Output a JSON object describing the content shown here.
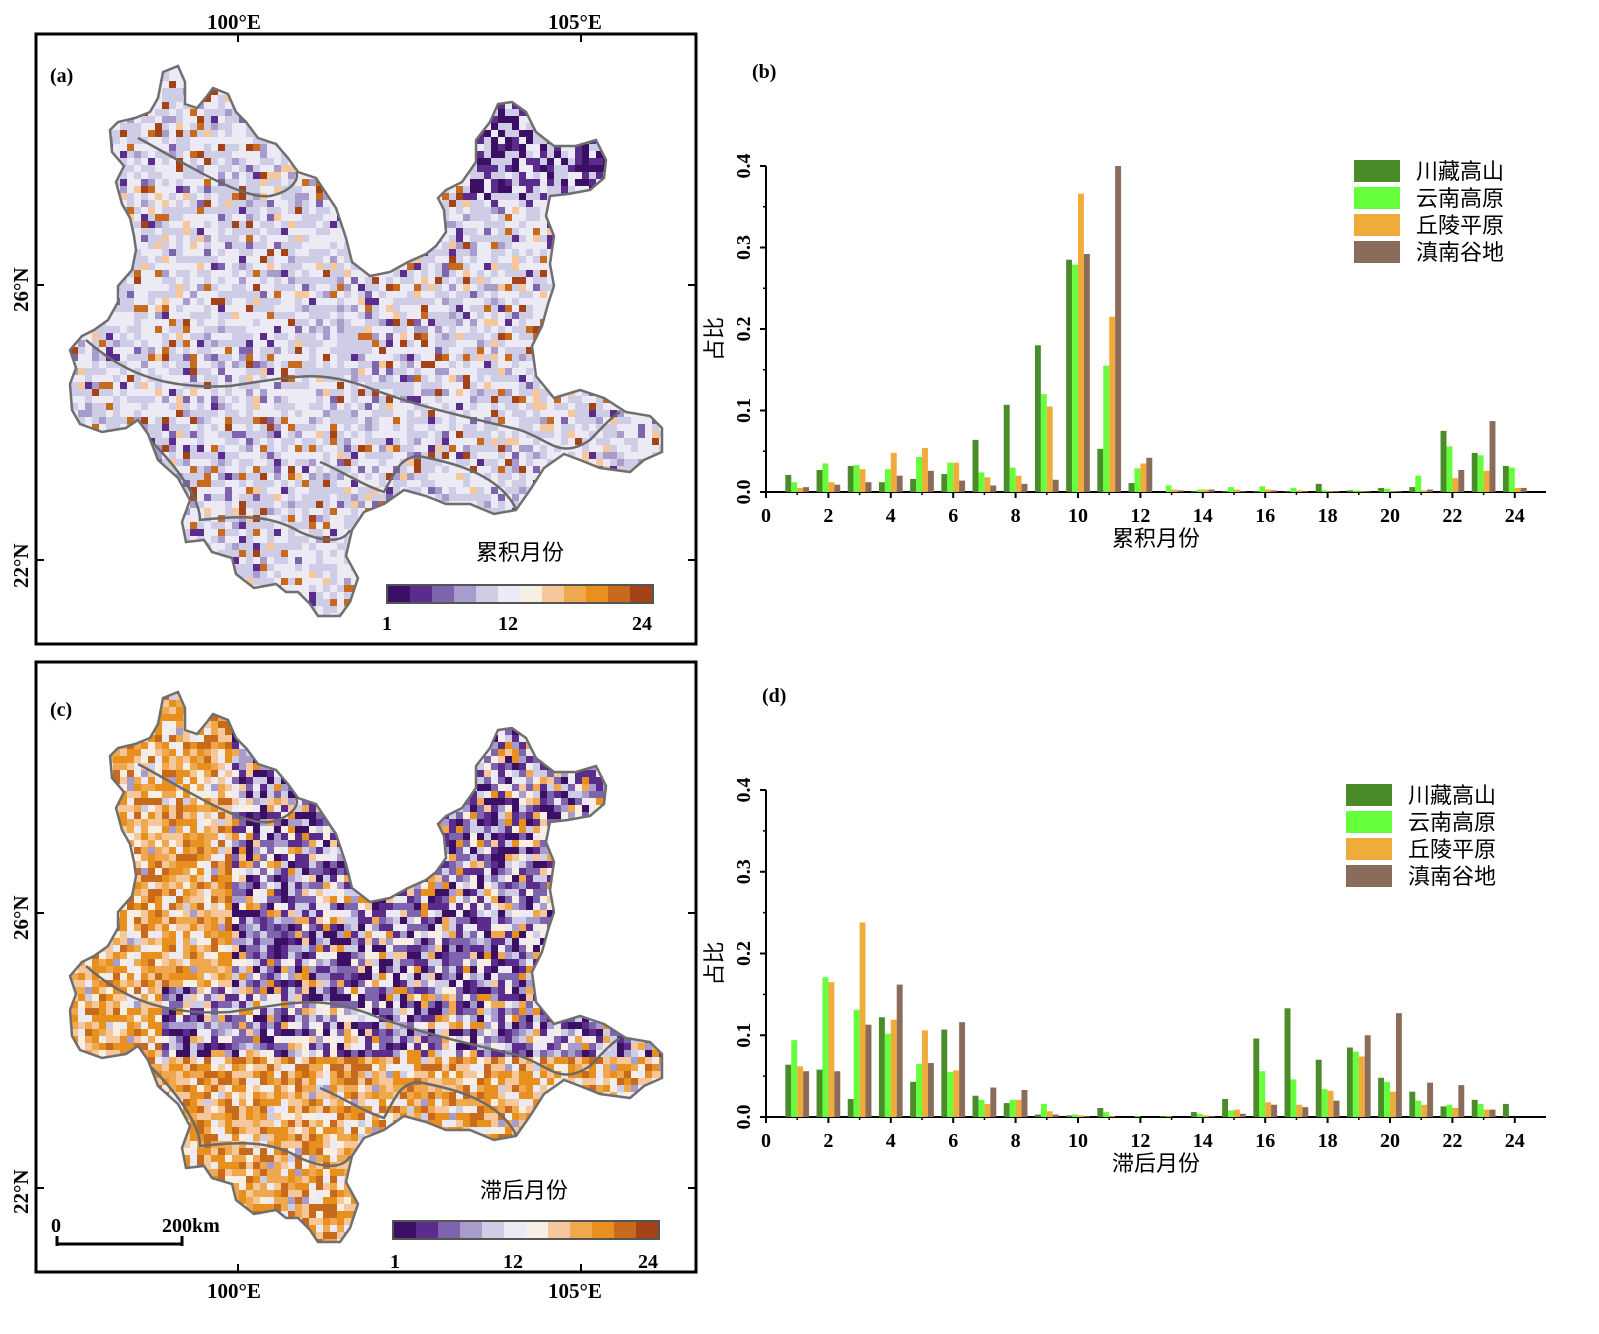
{
  "colors": {
    "ramp": [
      "#3b0f63",
      "#5a2d8c",
      "#7e63ad",
      "#a79ccb",
      "#cfcde6",
      "#eceaf4",
      "#f7efe4",
      "#f5c79a",
      "#f0a84f",
      "#e8901e",
      "#c86a1c",
      "#a44416"
    ],
    "series": [
      "#4a8b2a",
      "#66ff3c",
      "#f0ac3a",
      "#8b6b5a"
    ],
    "boundary": "#666666",
    "map_base": "#dcdcec"
  },
  "map_a": {
    "panel_label": "(a)",
    "lon_labels": [
      "100°E",
      "105°E"
    ],
    "lat_labels": [
      "26°N",
      "22°N"
    ],
    "legend_title": "累积月份",
    "legend_ticks": [
      "1",
      "12",
      "24"
    ]
  },
  "map_c": {
    "panel_label": "(c)",
    "lon_labels": [
      "100°E",
      "105°E"
    ],
    "lat_labels": [
      "26°N",
      "22°N"
    ],
    "legend_title": "滞后月份",
    "legend_ticks": [
      "1",
      "12",
      "24"
    ],
    "scale_labels": [
      "0",
      "200km"
    ]
  },
  "chart_data": [
    {
      "type": "bar",
      "panel_label": "(b)",
      "xlabel": "累积月份",
      "ylabel": "占比",
      "xlim": [
        0,
        25
      ],
      "ylim": [
        0,
        0.4
      ],
      "xticks": [
        0,
        2,
        4,
        6,
        8,
        10,
        12,
        14,
        16,
        18,
        20,
        22,
        24
      ],
      "yticks": [
        0.0,
        0.1,
        0.2,
        0.3,
        0.4
      ],
      "ytick_labels": [
        "0.0",
        "0.1",
        "0.2",
        "0.3",
        "0.4"
      ],
      "legend_position": "top-right",
      "categories": [
        1,
        2,
        3,
        4,
        5,
        6,
        7,
        8,
        9,
        10,
        11,
        12,
        13,
        14,
        15,
        16,
        17,
        18,
        19,
        20,
        21,
        22,
        23,
        24
      ],
      "series": [
        {
          "name": "川藏高山",
          "values": [
            0.021,
            0.027,
            0.032,
            0.012,
            0.016,
            0.022,
            0.064,
            0.107,
            0.18,
            0.285,
            0.053,
            0.011,
            0.0,
            0.001,
            0.001,
            0.001,
            0.001,
            0.01,
            0.002,
            0.005,
            0.006,
            0.075,
            0.048,
            0.032
          ]
        },
        {
          "name": "云南高原",
          "values": [
            0.012,
            0.035,
            0.033,
            0.028,
            0.043,
            0.036,
            0.024,
            0.03,
            0.12,
            0.279,
            0.155,
            0.029,
            0.008,
            0.003,
            0.006,
            0.007,
            0.005,
            0.002,
            0.002,
            0.004,
            0.02,
            0.056,
            0.045,
            0.03
          ]
        },
        {
          "name": "丘陵平原",
          "values": [
            0.005,
            0.012,
            0.028,
            0.048,
            0.054,
            0.036,
            0.018,
            0.02,
            0.105,
            0.366,
            0.215,
            0.035,
            0.003,
            0.003,
            0.003,
            0.003,
            0.002,
            0.001,
            0.001,
            0.001,
            0.002,
            0.017,
            0.026,
            0.005
          ]
        },
        {
          "name": "滇南谷地",
          "values": [
            0.006,
            0.009,
            0.012,
            0.02,
            0.026,
            0.014,
            0.008,
            0.01,
            0.015,
            0.292,
            0.4,
            0.042,
            0.002,
            0.003,
            0.001,
            0.002,
            0.001,
            0.001,
            0.001,
            0.001,
            0.003,
            0.027,
            0.087,
            0.005
          ]
        }
      ]
    },
    {
      "type": "bar",
      "panel_label": "(d)",
      "xlabel": "滞后月份",
      "ylabel": "占比",
      "xlim": [
        0,
        25
      ],
      "ylim": [
        0,
        0.4
      ],
      "xticks": [
        0,
        2,
        4,
        6,
        8,
        10,
        12,
        14,
        16,
        18,
        20,
        22,
        24
      ],
      "yticks": [
        0.0,
        0.1,
        0.2,
        0.3,
        0.4
      ],
      "ytick_labels": [
        "0.0",
        "0.1",
        "0.2",
        "0.3",
        "0.4"
      ],
      "legend_position": "top-right",
      "categories": [
        1,
        2,
        3,
        4,
        5,
        6,
        7,
        8,
        9,
        10,
        11,
        12,
        13,
        14,
        15,
        16,
        17,
        18,
        19,
        20,
        21,
        22,
        23,
        24
      ],
      "series": [
        {
          "name": "川藏高山",
          "values": [
            0.064,
            0.058,
            0.022,
            0.122,
            0.043,
            0.107,
            0.026,
            0.017,
            0.003,
            0.002,
            0.011,
            0.0,
            0.001,
            0.006,
            0.022,
            0.096,
            0.133,
            0.07,
            0.085,
            0.048,
            0.031,
            0.013,
            0.021,
            0.016
          ]
        },
        {
          "name": "云南高原",
          "values": [
            0.094,
            0.171,
            0.131,
            0.102,
            0.065,
            0.055,
            0.021,
            0.021,
            0.016,
            0.003,
            0.006,
            0.001,
            0.001,
            0.004,
            0.008,
            0.056,
            0.046,
            0.034,
            0.08,
            0.043,
            0.02,
            0.015,
            0.016,
            0.0
          ]
        },
        {
          "name": "丘陵平原",
          "values": [
            0.062,
            0.165,
            0.238,
            0.119,
            0.106,
            0.057,
            0.016,
            0.021,
            0.007,
            0.002,
            0.001,
            0.0,
            0.0,
            0.002,
            0.009,
            0.018,
            0.015,
            0.032,
            0.074,
            0.031,
            0.015,
            0.011,
            0.009,
            0.0
          ]
        },
        {
          "name": "滇南谷地",
          "values": [
            0.056,
            0.056,
            0.113,
            0.162,
            0.066,
            0.116,
            0.036,
            0.033,
            0.003,
            0.001,
            0.0,
            0.0,
            0.0,
            0.001,
            0.004,
            0.015,
            0.012,
            0.02,
            0.1,
            0.127,
            0.042,
            0.039,
            0.009,
            0.0
          ]
        }
      ]
    }
  ]
}
